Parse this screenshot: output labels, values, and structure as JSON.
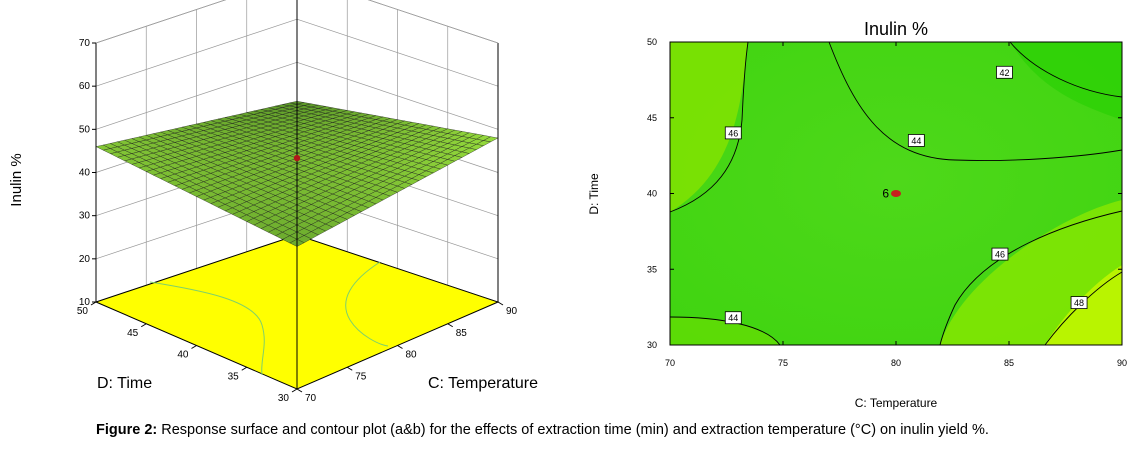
{
  "caption": {
    "label": "Figure 2:",
    "text": " Response surface and contour plot (a&b) for the effects of extraction time (min) and extraction temperature (°C) on inulin yield %."
  },
  "chart_data": [
    {
      "type": "surface",
      "title": "",
      "zlabel": "Inulin %",
      "xlabel": "C: Temperature",
      "ylabel": "D: Time",
      "x_ticks": [
        "70",
        "75",
        "80",
        "85",
        "90"
      ],
      "y_ticks": [
        "30",
        "35",
        "40",
        "45",
        "50"
      ],
      "z_ticks": [
        "10",
        "20",
        "30",
        "40",
        "50",
        "60",
        "70"
      ],
      "xlim": [
        70,
        90
      ],
      "ylim": [
        30,
        50
      ],
      "zlim": [
        10,
        70
      ],
      "corners": [
        {
          "temperature": 70,
          "time": 30,
          "inulin": 43
        },
        {
          "temperature": 90,
          "time": 30,
          "inulin": 48
        },
        {
          "temperature": 70,
          "time": 50,
          "inulin": 46
        },
        {
          "temperature": 90,
          "time": 50,
          "inulin": 41
        }
      ],
      "center_point": {
        "temperature": 80,
        "time": 40,
        "inulin": 44.5
      },
      "surface_color": "#7ec850",
      "floor_color": "#ffff00"
    },
    {
      "type": "contour",
      "title": "Inulin %",
      "xlabel": "C: Temperature",
      "ylabel": "D: Time",
      "x_ticks": [
        "70",
        "75",
        "80",
        "85",
        "90"
      ],
      "y_ticks": [
        "30",
        "35",
        "40",
        "45",
        "50"
      ],
      "xlim": [
        70,
        90
      ],
      "ylim": [
        30,
        50
      ],
      "contour_labels": [
        {
          "value": "42",
          "temperature": 84.8,
          "time": 48
        },
        {
          "value": "44",
          "temperature": 80.9,
          "time": 43.5
        },
        {
          "value": "46",
          "temperature": 72.8,
          "time": 44
        },
        {
          "value": "46",
          "temperature": 84.6,
          "time": 36
        },
        {
          "value": "48",
          "temperature": 88.1,
          "time": 32.8
        },
        {
          "value": "44",
          "temperature": 72.8,
          "time": 31.8
        }
      ],
      "design_point": {
        "label": "6",
        "temperature": 80,
        "time": 40
      },
      "colors": {
        "low": "#22dd00",
        "high": "#b8ff00",
        "point": "#c81e1e"
      }
    }
  ]
}
